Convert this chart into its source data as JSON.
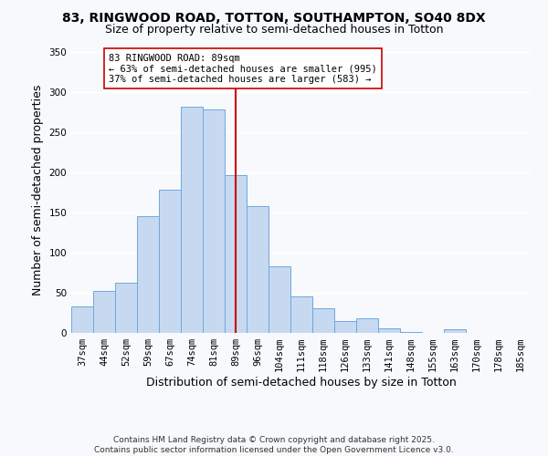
{
  "title_line1": "83, RINGWOOD ROAD, TOTTON, SOUTHAMPTON, SO40 8DX",
  "title_line2": "Size of property relative to semi-detached houses in Totton",
  "xlabel": "Distribution of semi-detached houses by size in Totton",
  "ylabel": "Number of semi-detached properties",
  "bin_labels": [
    "37sqm",
    "44sqm",
    "52sqm",
    "59sqm",
    "67sqm",
    "74sqm",
    "81sqm",
    "89sqm",
    "96sqm",
    "104sqm",
    "111sqm",
    "118sqm",
    "126sqm",
    "133sqm",
    "141sqm",
    "148sqm",
    "155sqm",
    "163sqm",
    "170sqm",
    "178sqm",
    "185sqm"
  ],
  "bar_heights": [
    33,
    52,
    62,
    145,
    178,
    282,
    278,
    197,
    158,
    83,
    45,
    31,
    15,
    18,
    6,
    1,
    0,
    5,
    0,
    0,
    0
  ],
  "bar_color": "#c6d9f1",
  "bar_edge_color": "#6fa8dc",
  "vline_x": 7,
  "vline_color": "#cc0000",
  "annotation_title": "83 RINGWOOD ROAD: 89sqm",
  "annotation_line1": "← 63% of semi-detached houses are smaller (995)",
  "annotation_line2": "37% of semi-detached houses are larger (583) →",
  "annotation_box_color": "#ffffff",
  "annotation_box_edge": "#cc0000",
  "ylim": [
    0,
    355
  ],
  "yticks": [
    0,
    50,
    100,
    150,
    200,
    250,
    300,
    350
  ],
  "footer_line1": "Contains HM Land Registry data © Crown copyright and database right 2025.",
  "footer_line2": "Contains public sector information licensed under the Open Government Licence v3.0.",
  "bg_color": "#f7f9fc",
  "grid_color": "#ffffff",
  "title_fontsize": 10,
  "subtitle_fontsize": 9,
  "xlabel_fontsize": 9,
  "ylabel_fontsize": 9,
  "tick_fontsize": 7.5,
  "annotation_fontsize": 7.5,
  "footer_fontsize": 6.5
}
